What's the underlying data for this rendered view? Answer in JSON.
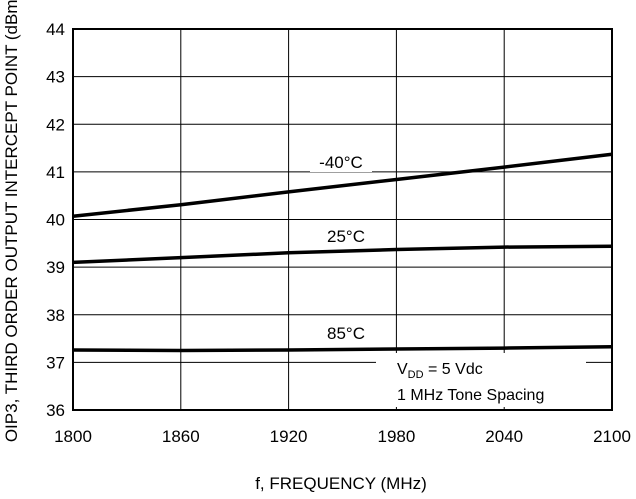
{
  "chart_data": {
    "type": "line",
    "xlabel": "f, FREQUENCY (MHz)",
    "ylabel": "OIP3, THIRD ORDER OUTPUT INTERCEPT POINT (dBm)",
    "xlim": [
      1800,
      2100
    ],
    "ylim": [
      36,
      44
    ],
    "grid": true,
    "x_ticks": [
      1800,
      1860,
      1920,
      1980,
      2040,
      2100
    ],
    "y_ticks": [
      36,
      37,
      38,
      39,
      40,
      41,
      42,
      43,
      44
    ],
    "x_tick_labels": [
      "1800",
      "1860",
      "1920",
      "1980",
      "2040",
      "2100"
    ],
    "y_tick_labels": [
      "36",
      "37",
      "38",
      "39",
      "40",
      "41",
      "42",
      "43",
      "44"
    ],
    "series": [
      {
        "name": "-40°C",
        "x": [
          1800,
          1860,
          1920,
          1980,
          2040,
          2100
        ],
        "y": [
          40.07,
          40.31,
          40.58,
          40.84,
          41.1,
          41.37
        ]
      },
      {
        "name": "25°C",
        "x": [
          1800,
          1860,
          1920,
          1980,
          2040,
          2100
        ],
        "y": [
          39.1,
          39.2,
          39.3,
          39.37,
          39.42,
          39.44
        ]
      },
      {
        "name": "85°C",
        "x": [
          1800,
          1860,
          1920,
          1980,
          2040,
          2100
        ],
        "y": [
          37.26,
          37.25,
          37.26,
          37.28,
          37.3,
          37.33
        ]
      }
    ],
    "annotation": {
      "line1_main": "V",
      "line1_sub": "DD",
      "line1_rest": " = 5 Vdc",
      "line2": "1 MHz Tone Spacing"
    }
  }
}
